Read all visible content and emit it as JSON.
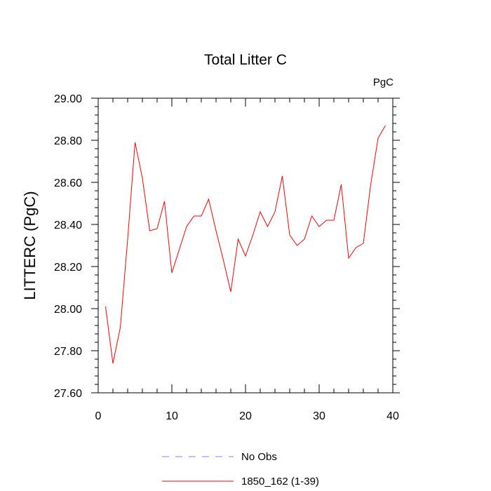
{
  "chart_data": {
    "type": "line",
    "title": "Total Litter C",
    "units_label": "PgC",
    "xlabel": "",
    "ylabel": "LITTERC  (PgC)",
    "xlim": [
      0,
      40
    ],
    "ylim": [
      27.6,
      29.0
    ],
    "x_ticks": [
      0,
      10,
      20,
      30,
      40
    ],
    "x_tick_labels": [
      "0",
      "10",
      "20",
      "30",
      "40"
    ],
    "y_ticks": [
      27.6,
      27.8,
      28.0,
      28.2,
      28.4,
      28.6,
      28.8,
      29.0
    ],
    "y_tick_labels": [
      "27.60",
      "27.80",
      "28.00",
      "28.20",
      "28.40",
      "28.60",
      "28.80",
      "29.00"
    ],
    "grid": false,
    "legend_position": "bottom",
    "legend": [
      {
        "label": "No Obs",
        "style": "dashed",
        "color": "#8080ff"
      },
      {
        "label": "1850_162 (1-39)",
        "style": "solid",
        "color": "#ff0000"
      }
    ],
    "series": [
      {
        "name": "1850_162 (1-39)",
        "color": "#ff0000",
        "x": [
          1,
          2,
          3,
          4,
          5,
          6,
          7,
          8,
          9,
          10,
          11,
          12,
          13,
          14,
          15,
          16,
          17,
          18,
          19,
          20,
          21,
          22,
          23,
          24,
          25,
          26,
          27,
          28,
          29,
          30,
          31,
          32,
          33,
          34,
          35,
          36,
          37,
          38,
          39
        ],
        "values": [
          28.01,
          27.74,
          27.91,
          28.33,
          28.79,
          28.62,
          28.37,
          28.38,
          28.51,
          28.17,
          28.28,
          28.39,
          28.44,
          28.44,
          28.52,
          28.37,
          28.23,
          28.08,
          28.33,
          28.25,
          28.35,
          28.46,
          28.39,
          28.46,
          28.63,
          28.35,
          28.3,
          28.33,
          28.44,
          28.39,
          28.42,
          28.42,
          28.59,
          28.24,
          28.29,
          28.31,
          28.59,
          28.81,
          28.87
        ]
      }
    ]
  }
}
